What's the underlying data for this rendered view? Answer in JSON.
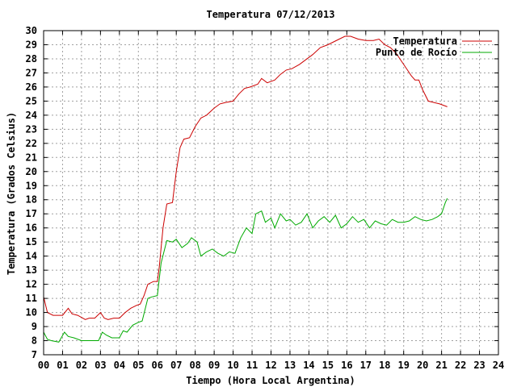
{
  "chart_data": {
    "type": "line",
    "title": "Temperatura 07/12/2013",
    "xlabel": "Tiempo (Hora Local Argentina)",
    "ylabel": "Temperatura (Grados Celsius)",
    "xlim": [
      0,
      24
    ],
    "ylim": [
      7,
      30
    ],
    "grid": true,
    "legend_position": "top-right",
    "x_ticks": [
      "00",
      "01",
      "02",
      "03",
      "04",
      "05",
      "06",
      "07",
      "08",
      "09",
      "10",
      "11",
      "12",
      "13",
      "14",
      "15",
      "16",
      "17",
      "18",
      "19",
      "20",
      "21",
      "22",
      "23",
      "24"
    ],
    "y_ticks": [
      "7",
      "8",
      "9",
      "10",
      "11",
      "12",
      "13",
      "14",
      "15",
      "16",
      "17",
      "18",
      "19",
      "20",
      "21",
      "22",
      "23",
      "24",
      "25",
      "26",
      "27",
      "28",
      "29",
      "30"
    ],
    "series": [
      {
        "name": "Temperatura",
        "color": "#cc0000",
        "x": [
          0.0,
          0.2,
          0.5,
          1.0,
          1.3,
          1.5,
          1.8,
          2.2,
          2.4,
          2.7,
          3.0,
          3.2,
          3.4,
          3.7,
          4.0,
          4.3,
          4.6,
          4.9,
          5.1,
          5.3,
          5.5,
          5.8,
          6.0,
          6.1,
          6.3,
          6.5,
          6.8,
          7.0,
          7.2,
          7.4,
          7.7,
          8.0,
          8.3,
          8.6,
          9.0,
          9.3,
          9.6,
          10.0,
          10.3,
          10.6,
          10.9,
          11.3,
          11.5,
          11.8,
          12.2,
          12.5,
          12.8,
          13.1,
          13.5,
          13.8,
          14.2,
          14.6,
          15.0,
          15.3,
          15.6,
          15.9,
          16.2,
          16.6,
          17.0,
          17.4,
          17.7,
          18.0,
          18.3,
          18.6,
          18.9,
          19.2,
          19.4,
          19.6,
          19.8,
          20.0,
          20.3,
          20.6,
          20.9,
          21.1,
          21.3
        ],
        "y": [
          11.1,
          10.0,
          9.8,
          9.8,
          10.3,
          9.9,
          9.8,
          9.5,
          9.6,
          9.6,
          10.0,
          9.6,
          9.5,
          9.6,
          9.6,
          10.0,
          10.3,
          10.5,
          10.6,
          11.2,
          12.0,
          12.2,
          12.2,
          13.2,
          16.0,
          17.7,
          17.8,
          20.0,
          21.7,
          22.3,
          22.4,
          23.2,
          23.8,
          24.0,
          24.5,
          24.8,
          24.9,
          25.0,
          25.5,
          25.9,
          26.0,
          26.2,
          26.6,
          26.3,
          26.5,
          26.9,
          27.2,
          27.3,
          27.6,
          27.9,
          28.3,
          28.8,
          29.0,
          29.2,
          29.4,
          29.6,
          29.6,
          29.4,
          29.3,
          29.3,
          29.4,
          29.0,
          28.8,
          28.4,
          27.8,
          27.2,
          26.8,
          26.5,
          26.5,
          25.8,
          25.0,
          24.9,
          24.8,
          24.7,
          24.6
        ]
      },
      {
        "name": "Punto de Rocío",
        "color": "#00aa00",
        "x": [
          0.0,
          0.2,
          0.4,
          0.8,
          1.1,
          1.3,
          1.6,
          2.0,
          2.2,
          2.5,
          2.9,
          3.1,
          3.3,
          3.6,
          4.0,
          4.2,
          4.4,
          4.7,
          5.0,
          5.2,
          5.5,
          5.7,
          6.0,
          6.2,
          6.5,
          6.8,
          7.0,
          7.3,
          7.6,
          7.8,
          8.1,
          8.3,
          8.6,
          8.9,
          9.2,
          9.5,
          9.8,
          10.1,
          10.4,
          10.7,
          11.0,
          11.2,
          11.5,
          11.7,
          12.0,
          12.2,
          12.5,
          12.8,
          13.0,
          13.3,
          13.6,
          13.9,
          14.2,
          14.5,
          14.8,
          15.1,
          15.4,
          15.7,
          16.0,
          16.3,
          16.6,
          16.9,
          17.2,
          17.5,
          17.8,
          18.1,
          18.4,
          18.7,
          19.0,
          19.3,
          19.6,
          19.9,
          20.2,
          20.5,
          20.8,
          21.0,
          21.2,
          21.3
        ],
        "y": [
          8.6,
          8.1,
          8.0,
          7.9,
          8.6,
          8.3,
          8.2,
          8.0,
          8.0,
          8.0,
          8.0,
          8.6,
          8.4,
          8.2,
          8.2,
          8.7,
          8.6,
          9.1,
          9.3,
          9.4,
          11.0,
          11.1,
          11.2,
          13.5,
          15.1,
          15.0,
          15.2,
          14.6,
          14.9,
          15.3,
          15.0,
          14.0,
          14.3,
          14.5,
          14.2,
          14.0,
          14.3,
          14.2,
          15.3,
          16.0,
          15.6,
          17.0,
          17.2,
          16.4,
          16.7,
          16.0,
          17.0,
          16.5,
          16.6,
          16.2,
          16.4,
          17.0,
          16.0,
          16.5,
          16.8,
          16.4,
          16.9,
          16.0,
          16.3,
          16.8,
          16.4,
          16.6,
          16.0,
          16.5,
          16.3,
          16.2,
          16.6,
          16.4,
          16.4,
          16.5,
          16.8,
          16.6,
          16.5,
          16.6,
          16.8,
          17.0,
          17.8,
          18.1
        ]
      }
    ]
  }
}
